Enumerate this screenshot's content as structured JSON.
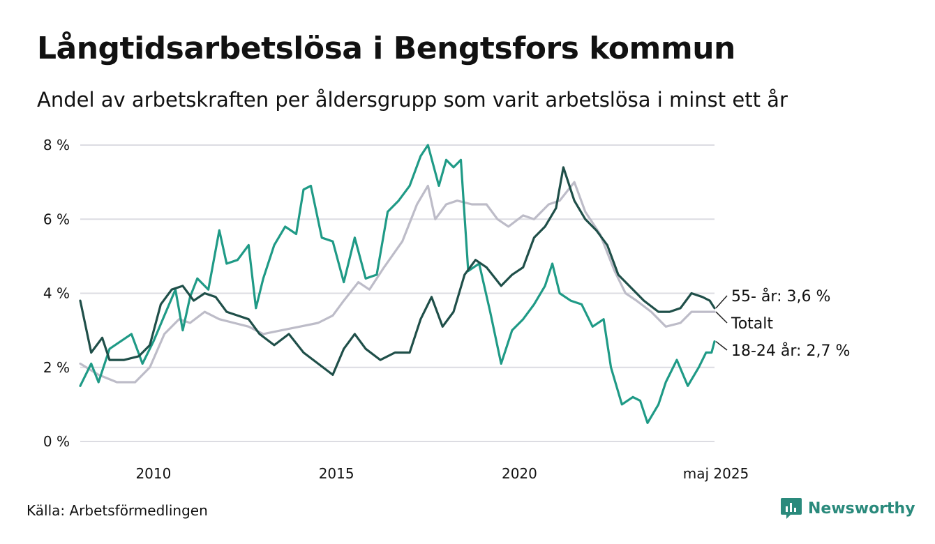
{
  "title": "Långtidsarbetslösa i Bengtsfors kommun",
  "subtitle": "Andel av arbetskraften per åldersgrupp som varit arbetslösa i minst ett år",
  "source": "Källa: Arbetsförmedlingen",
  "brand": {
    "name": "Newsworthy",
    "icon": "newsworthy-logo-icon",
    "color": "#2a8a7c"
  },
  "chart_data": {
    "type": "line",
    "title": "Långtidsarbetslösa i Bengtsfors kommun",
    "xlabel": "",
    "ylabel": "",
    "ylim": [
      0,
      8
    ],
    "xlim": [
      2008.0,
      2025.33
    ],
    "y_ticks": [
      0,
      2,
      4,
      6,
      8
    ],
    "y_tick_labels": [
      "0 %",
      "2 %",
      "4 %",
      "6 %",
      "8 %"
    ],
    "x_ticks": [
      2010,
      2015,
      2020,
      2025.33
    ],
    "x_tick_labels": [
      "2010",
      "2015",
      "2020",
      "maj 2025"
    ],
    "grid": "horizontal",
    "legend": "end-labels",
    "series": [
      {
        "name": "Totalt",
        "end_label": "Totalt",
        "color": "#bdbcc8",
        "points": [
          [
            2008.0,
            2.1
          ],
          [
            2008.5,
            1.8
          ],
          [
            2009.0,
            1.6
          ],
          [
            2009.5,
            1.6
          ],
          [
            2009.9,
            2.0
          ],
          [
            2010.3,
            2.9
          ],
          [
            2010.7,
            3.3
          ],
          [
            2011.0,
            3.2
          ],
          [
            2011.4,
            3.5
          ],
          [
            2011.8,
            3.3
          ],
          [
            2012.2,
            3.2
          ],
          [
            2012.6,
            3.1
          ],
          [
            2013.0,
            2.9
          ],
          [
            2013.5,
            3.0
          ],
          [
            2014.0,
            3.1
          ],
          [
            2014.5,
            3.2
          ],
          [
            2014.9,
            3.4
          ],
          [
            2015.2,
            3.8
          ],
          [
            2015.6,
            4.3
          ],
          [
            2015.9,
            4.1
          ],
          [
            2016.3,
            4.7
          ],
          [
            2016.8,
            5.4
          ],
          [
            2017.2,
            6.4
          ],
          [
            2017.5,
            6.9
          ],
          [
            2017.7,
            6.0
          ],
          [
            2018.0,
            6.4
          ],
          [
            2018.3,
            6.5
          ],
          [
            2018.7,
            6.4
          ],
          [
            2019.1,
            6.4
          ],
          [
            2019.4,
            6.0
          ],
          [
            2019.7,
            5.8
          ],
          [
            2020.1,
            6.1
          ],
          [
            2020.4,
            6.0
          ],
          [
            2020.8,
            6.4
          ],
          [
            2021.1,
            6.5
          ],
          [
            2021.5,
            7.0
          ],
          [
            2021.8,
            6.2
          ],
          [
            2022.2,
            5.6
          ],
          [
            2022.6,
            4.6
          ],
          [
            2022.9,
            4.0
          ],
          [
            2023.2,
            3.8
          ],
          [
            2023.6,
            3.5
          ],
          [
            2024.0,
            3.1
          ],
          [
            2024.4,
            3.2
          ],
          [
            2024.7,
            3.5
          ],
          [
            2025.0,
            3.5
          ],
          [
            2025.2,
            3.5
          ],
          [
            2025.33,
            3.5
          ]
        ]
      },
      {
        "name": "55- år",
        "end_label": "55- år: 3,6 %",
        "color": "#1f4f49",
        "points": [
          [
            2008.0,
            3.8
          ],
          [
            2008.3,
            2.4
          ],
          [
            2008.6,
            2.8
          ],
          [
            2008.8,
            2.2
          ],
          [
            2009.2,
            2.2
          ],
          [
            2009.6,
            2.3
          ],
          [
            2009.9,
            2.6
          ],
          [
            2010.2,
            3.7
          ],
          [
            2010.5,
            4.1
          ],
          [
            2010.8,
            4.2
          ],
          [
            2011.1,
            3.8
          ],
          [
            2011.4,
            4.0
          ],
          [
            2011.7,
            3.9
          ],
          [
            2012.0,
            3.5
          ],
          [
            2012.3,
            3.4
          ],
          [
            2012.6,
            3.3
          ],
          [
            2012.9,
            2.9
          ],
          [
            2013.3,
            2.6
          ],
          [
            2013.7,
            2.9
          ],
          [
            2014.1,
            2.4
          ],
          [
            2014.5,
            2.1
          ],
          [
            2014.9,
            1.8
          ],
          [
            2015.2,
            2.5
          ],
          [
            2015.5,
            2.9
          ],
          [
            2015.8,
            2.5
          ],
          [
            2016.2,
            2.2
          ],
          [
            2016.6,
            2.4
          ],
          [
            2017.0,
            2.4
          ],
          [
            2017.3,
            3.3
          ],
          [
            2017.6,
            3.9
          ],
          [
            2017.9,
            3.1
          ],
          [
            2018.2,
            3.5
          ],
          [
            2018.5,
            4.5
          ],
          [
            2018.8,
            4.9
          ],
          [
            2019.1,
            4.7
          ],
          [
            2019.5,
            4.2
          ],
          [
            2019.8,
            4.5
          ],
          [
            2020.1,
            4.7
          ],
          [
            2020.4,
            5.5
          ],
          [
            2020.7,
            5.8
          ],
          [
            2021.0,
            6.3
          ],
          [
            2021.2,
            7.4
          ],
          [
            2021.5,
            6.5
          ],
          [
            2021.8,
            6.0
          ],
          [
            2022.1,
            5.7
          ],
          [
            2022.4,
            5.3
          ],
          [
            2022.7,
            4.5
          ],
          [
            2023.0,
            4.2
          ],
          [
            2023.4,
            3.8
          ],
          [
            2023.8,
            3.5
          ],
          [
            2024.1,
            3.5
          ],
          [
            2024.4,
            3.6
          ],
          [
            2024.7,
            4.0
          ],
          [
            2025.0,
            3.9
          ],
          [
            2025.2,
            3.8
          ],
          [
            2025.33,
            3.6
          ]
        ]
      },
      {
        "name": "18-24 år",
        "end_label": "18-24 år: 2,7 %",
        "color": "#1f9a86",
        "points": [
          [
            2008.0,
            1.5
          ],
          [
            2008.3,
            2.1
          ],
          [
            2008.5,
            1.6
          ],
          [
            2008.8,
            2.5
          ],
          [
            2009.1,
            2.7
          ],
          [
            2009.4,
            2.9
          ],
          [
            2009.7,
            2.1
          ],
          [
            2010.0,
            2.7
          ],
          [
            2010.3,
            3.4
          ],
          [
            2010.6,
            4.1
          ],
          [
            2010.8,
            3.0
          ],
          [
            2011.0,
            3.9
          ],
          [
            2011.2,
            4.4
          ],
          [
            2011.5,
            4.1
          ],
          [
            2011.8,
            5.7
          ],
          [
            2012.0,
            4.8
          ],
          [
            2012.3,
            4.9
          ],
          [
            2012.6,
            5.3
          ],
          [
            2012.8,
            3.6
          ],
          [
            2013.0,
            4.4
          ],
          [
            2013.3,
            5.3
          ],
          [
            2013.6,
            5.8
          ],
          [
            2013.9,
            5.6
          ],
          [
            2014.1,
            6.8
          ],
          [
            2014.3,
            6.9
          ],
          [
            2014.6,
            5.5
          ],
          [
            2014.9,
            5.4
          ],
          [
            2015.2,
            4.3
          ],
          [
            2015.5,
            5.5
          ],
          [
            2015.8,
            4.4
          ],
          [
            2016.1,
            4.5
          ],
          [
            2016.4,
            6.2
          ],
          [
            2016.7,
            6.5
          ],
          [
            2017.0,
            6.9
          ],
          [
            2017.3,
            7.7
          ],
          [
            2017.5,
            8.0
          ],
          [
            2017.8,
            6.9
          ],
          [
            2018.0,
            7.6
          ],
          [
            2018.2,
            7.4
          ],
          [
            2018.4,
            7.6
          ],
          [
            2018.6,
            4.6
          ],
          [
            2018.9,
            4.8
          ],
          [
            2019.2,
            3.5
          ],
          [
            2019.5,
            2.1
          ],
          [
            2019.8,
            3.0
          ],
          [
            2020.1,
            3.3
          ],
          [
            2020.4,
            3.7
          ],
          [
            2020.7,
            4.2
          ],
          [
            2020.9,
            4.8
          ],
          [
            2021.1,
            4.0
          ],
          [
            2021.4,
            3.8
          ],
          [
            2021.7,
            3.7
          ],
          [
            2022.0,
            3.1
          ],
          [
            2022.3,
            3.3
          ],
          [
            2022.5,
            2.0
          ],
          [
            2022.8,
            1.0
          ],
          [
            2023.1,
            1.2
          ],
          [
            2023.3,
            1.1
          ],
          [
            2023.5,
            0.5
          ],
          [
            2023.8,
            1.0
          ],
          [
            2024.0,
            1.6
          ],
          [
            2024.3,
            2.2
          ],
          [
            2024.6,
            1.5
          ],
          [
            2024.9,
            2.0
          ],
          [
            2025.1,
            2.4
          ],
          [
            2025.25,
            2.4
          ],
          [
            2025.33,
            2.7
          ]
        ]
      }
    ]
  }
}
